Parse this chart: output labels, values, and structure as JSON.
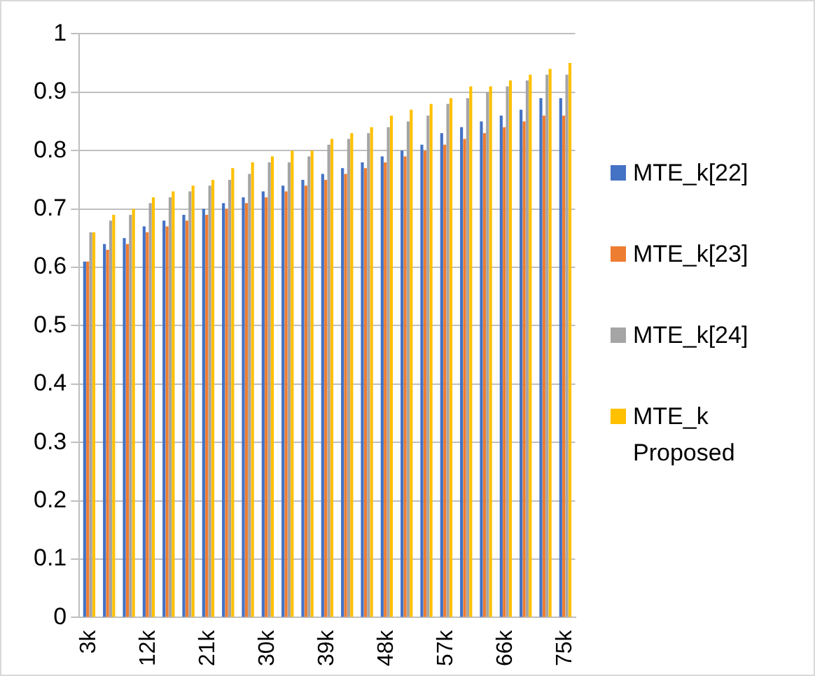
{
  "chart_data": {
    "type": "bar",
    "categories": [
      "3k",
      null,
      null,
      "12k",
      null,
      null,
      "21k",
      null,
      null,
      "30k",
      null,
      null,
      "39k",
      null,
      null,
      "48k",
      null,
      null,
      "57k",
      null,
      null,
      "66k",
      null,
      null,
      "75k"
    ],
    "series": [
      {
        "name": "MTE_k[22]",
        "color": "#4472c4",
        "values": [
          0.61,
          0.64,
          0.65,
          0.67,
          0.68,
          0.69,
          0.7,
          0.71,
          0.72,
          0.73,
          0.74,
          0.75,
          0.76,
          0.77,
          0.78,
          0.79,
          0.8,
          0.81,
          0.83,
          0.84,
          0.85,
          0.86,
          0.87,
          0.89,
          0.89
        ]
      },
      {
        "name": "MTE_k[23]",
        "color": "#ed7d31",
        "values": [
          0.61,
          0.63,
          0.64,
          0.66,
          0.67,
          0.68,
          0.69,
          0.7,
          0.71,
          0.72,
          0.73,
          0.74,
          0.75,
          0.76,
          0.77,
          0.78,
          0.79,
          0.8,
          0.81,
          0.82,
          0.83,
          0.84,
          0.85,
          0.86,
          0.86
        ]
      },
      {
        "name": "MTE_k[24]",
        "color": "#a5a5a5",
        "values": [
          0.66,
          0.68,
          0.69,
          0.71,
          0.72,
          0.73,
          0.74,
          0.75,
          0.76,
          0.78,
          0.78,
          0.79,
          0.81,
          0.82,
          0.83,
          0.84,
          0.85,
          0.86,
          0.88,
          0.89,
          0.9,
          0.91,
          0.92,
          0.93,
          0.93
        ]
      },
      {
        "name": "MTE_k Proposed",
        "color": "#ffc000",
        "values": [
          0.66,
          0.69,
          0.7,
          0.72,
          0.73,
          0.74,
          0.75,
          0.77,
          0.78,
          0.79,
          0.8,
          0.8,
          0.82,
          0.83,
          0.84,
          0.86,
          0.87,
          0.88,
          0.89,
          0.91,
          0.91,
          0.92,
          0.93,
          0.94,
          0.95
        ]
      }
    ],
    "ylim": [
      0,
      1
    ],
    "yticks": [
      0,
      0.1,
      0.2,
      0.3,
      0.4,
      0.5,
      0.6,
      0.7,
      0.8,
      0.9,
      1
    ],
    "grid": "y",
    "legend": "right"
  }
}
